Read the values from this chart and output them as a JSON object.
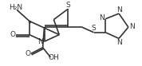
{
  "bg_color": "#ffffff",
  "line_color": "#333333",
  "line_width": 1.2,
  "font_size": 6.5,
  "xlim": [
    0,
    1.78
  ],
  "ylim": [
    0,
    0.83
  ],
  "S1_label": "S",
  "S2_label": "S",
  "N_label": "N",
  "O_label": "O",
  "NH2_label": "H₂N",
  "OH_label": "OH",
  "N_labels_tet": [
    "N",
    "N",
    "N",
    "N"
  ]
}
